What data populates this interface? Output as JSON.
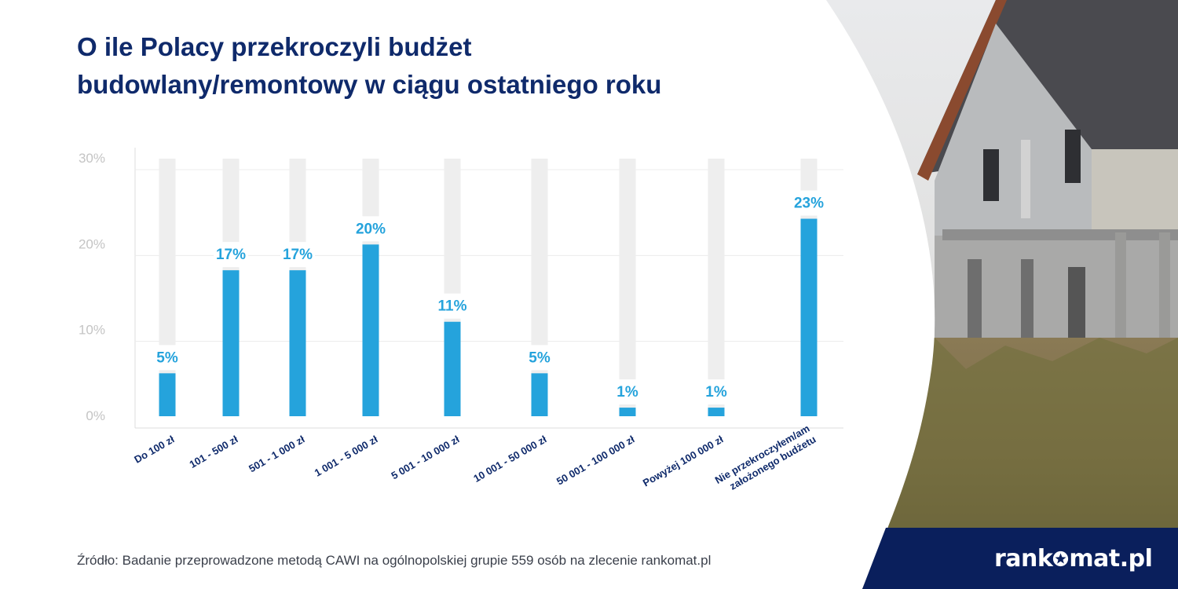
{
  "title_line1": "O ile Polacy przekroczyli budżet",
  "title_line2": "budowlany/remontowy w ciągu ostatniego roku",
  "source": "Źródło: Badanie przeprowadzone metodą CAWI na ogólnopolskiej grupie 559 osób na zlecenie rankomat.pl",
  "brand": {
    "part1": "rank",
    "part2": "mat.pl"
  },
  "colors": {
    "bar": "#25a3dc",
    "track": "#eeeeee",
    "title": "#0f2a6b",
    "navy": "#0a1f5c"
  },
  "chart_data": {
    "type": "bar",
    "categories": [
      "Do 100 zł",
      "101 - 500 zł",
      "501 - 1 000 zł",
      "1 001 - 5 000 zł",
      "5 001 - 10 000 zł",
      "10 001 - 50 000 zł",
      "50 001 - 100 000 zł",
      "Powyżej 100 000 zł",
      "Nie przekroczyłem/am|założonego budżetu"
    ],
    "values": [
      5,
      17,
      17,
      20,
      11,
      5,
      1,
      1,
      23
    ],
    "value_labels": [
      "5%",
      "17%",
      "17%",
      "20%",
      "11%",
      "5%",
      "1%",
      "1%",
      "23%"
    ],
    "y_ticks": [
      "0%",
      "10%",
      "20%",
      "30%"
    ],
    "ylim": [
      0,
      30
    ],
    "grid": true
  }
}
